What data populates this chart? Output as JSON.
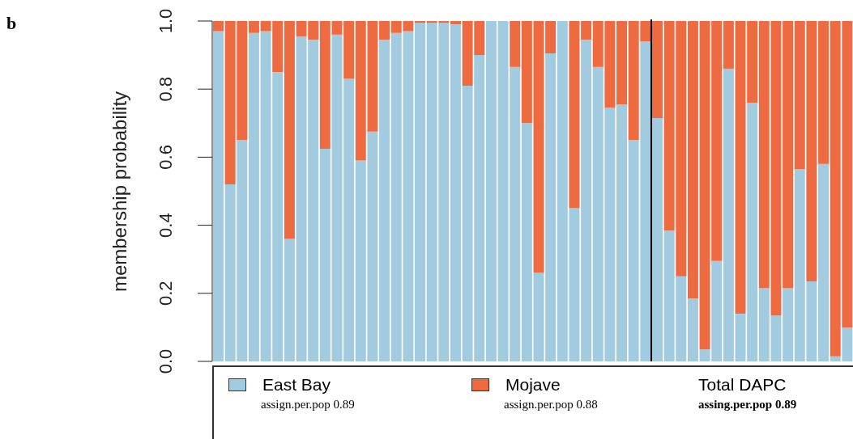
{
  "chart_data": {
    "type": "bar",
    "title": "b",
    "ylabel": "membership probability",
    "stacked": true,
    "categories": [
      null,
      null,
      null,
      null,
      null,
      null,
      null,
      null,
      null,
      null,
      null,
      null,
      null,
      null,
      null,
      null,
      null,
      null,
      null,
      null,
      null,
      null,
      null,
      null,
      null,
      null,
      null,
      null,
      null,
      null,
      null,
      null,
      null,
      null,
      null,
      null,
      null,
      null,
      null,
      null,
      null,
      null,
      null,
      null,
      null,
      null,
      null,
      null,
      null,
      null,
      null,
      null,
      null,
      null
    ],
    "series": [
      {
        "name": "East Bay",
        "color": "#a3cbe0",
        "values": [
          0.97,
          0.52,
          0.65,
          0.965,
          0.97,
          0.85,
          0.36,
          0.955,
          0.945,
          0.625,
          0.96,
          0.83,
          0.59,
          0.675,
          0.945,
          0.965,
          0.97,
          0.995,
          0.995,
          0.995,
          0.99,
          0.81,
          0.9,
          1,
          1,
          0.865,
          0.7,
          0.26,
          0.905,
          1,
          0.45,
          0.945,
          0.865,
          0.745,
          0.755,
          0.65,
          0.94,
          0.715,
          0.385,
          0.25,
          0.185,
          0.035,
          0.295,
          0.86,
          0.14,
          0.76,
          0.215,
          0.135,
          0.215,
          0.565,
          0.235,
          0.58,
          0.015,
          0.1
        ]
      },
      {
        "name": "Mojave",
        "color": "#ee6a41",
        "values": [
          0.03,
          0.48,
          0.35,
          0.035,
          0.03,
          0.15,
          0.64,
          0.045,
          0.055,
          0.375,
          0.04,
          0.17,
          0.41,
          0.325,
          0.055,
          0.035,
          0.03,
          0.005,
          0.005,
          0.005,
          0.01,
          0.19,
          0.1,
          0,
          0,
          0.135,
          0.3,
          0.74,
          0.095,
          0,
          0.55,
          0.055,
          0.135,
          0.255,
          0.245,
          0.35,
          0.06,
          0.285,
          0.615,
          0.75,
          0.815,
          0.965,
          0.705,
          0.14,
          0.86,
          0.24,
          0.785,
          0.865,
          0.785,
          0.435,
          0.765,
          0.42,
          0.985,
          0.9
        ]
      }
    ],
    "ylim": [
      0,
      1
    ],
    "yticks": [
      {
        "value": 0,
        "label": "0.0"
      },
      {
        "value": 0.2,
        "label": "0.2"
      },
      {
        "value": 0.4,
        "label": "0.4"
      },
      {
        "value": 0.6,
        "label": "0.6"
      },
      {
        "value": 0.8,
        "label": "0.8"
      },
      {
        "value": 1,
        "label": "1.0"
      }
    ],
    "legend": "bottom",
    "annotations": [
      "assign.per.pop 0.89",
      "assign.per.pop 0.88",
      "Total DAPC",
      "assing.per.pop 0.89"
    ]
  }
}
